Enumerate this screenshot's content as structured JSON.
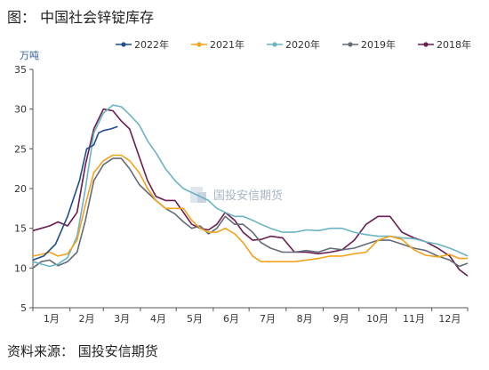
{
  "figure": {
    "title": "图：  中国社会锌锭库存",
    "source": "资料来源：  国投安信期货"
  },
  "chart_data": {
    "type": "line",
    "unit_label": "万吨",
    "watermark_text": "国投安信期货",
    "categories": [
      "1月",
      "2月",
      "3月",
      "4月",
      "5月",
      "6月",
      "7月",
      "8月",
      "9月",
      "10月",
      "11月",
      "12月"
    ],
    "x_unit": "day of year",
    "ylim": [
      5,
      35
    ],
    "yticks": [
      5,
      10,
      15,
      20,
      25,
      30,
      35
    ],
    "grid": false,
    "legend_position": "top",
    "series": [
      {
        "name": "2022年",
        "color": "#1f4e8c",
        "x": [
          1,
          10,
          20,
          30,
          40,
          46,
          52,
          56,
          60,
          66,
          72
        ],
        "y": [
          11,
          11.5,
          13,
          16.5,
          21,
          25,
          25.5,
          27,
          27.3,
          27.5,
          27.8
        ]
      },
      {
        "name": "2021年",
        "color": "#f4a21a",
        "x": [
          1,
          8,
          15,
          22,
          30,
          38,
          45,
          52,
          60,
          68,
          75,
          82,
          90,
          97,
          104,
          112,
          120,
          127,
          134,
          141,
          148,
          155,
          162,
          170,
          177,
          185,
          192,
          200,
          210,
          220,
          230,
          240,
          250,
          260,
          270,
          280,
          290,
          300,
          310,
          320,
          330,
          340,
          350,
          358,
          365
        ],
        "y": [
          11.5,
          11.7,
          12,
          11.5,
          11.8,
          13.5,
          18,
          22,
          23.5,
          24.2,
          24.2,
          23.5,
          22,
          20,
          18.5,
          17.5,
          17.5,
          17.5,
          16,
          15,
          14.5,
          14.5,
          15,
          14.3,
          13.2,
          11.5,
          10.8,
          10.8,
          10.8,
          10.8,
          11,
          11.2,
          11.5,
          11.5,
          11.8,
          12,
          13.5,
          14,
          13.6,
          12.3,
          11.6,
          11.4,
          11.7,
          11.2,
          11.2
        ]
      },
      {
        "name": "2020年",
        "color": "#6bb3c4",
        "x": [
          1,
          8,
          15,
          22,
          30,
          38,
          45,
          52,
          60,
          68,
          75,
          82,
          90,
          97,
          104,
          112,
          120,
          127,
          134,
          141,
          148,
          155,
          162,
          170,
          177,
          185,
          192,
          200,
          210,
          220,
          230,
          240,
          250,
          260,
          270,
          280,
          290,
          300,
          310,
          320,
          330,
          340,
          350,
          358,
          365
        ],
        "y": [
          10.8,
          10.5,
          10.2,
          10.5,
          11.3,
          14,
          20,
          27,
          29.5,
          30.5,
          30.3,
          29.3,
          28,
          26,
          24.5,
          22.5,
          21,
          20,
          19.5,
          19,
          18.5,
          17.5,
          17,
          16.5,
          16.5,
          16,
          15.5,
          15,
          14.5,
          14.5,
          14.8,
          14.7,
          15,
          15,
          14.5,
          14.2,
          14,
          14,
          13.8,
          13.7,
          13.3,
          13,
          12.5,
          12,
          11.5
        ]
      },
      {
        "name": "2019年",
        "color": "#636b78",
        "x": [
          1,
          8,
          15,
          22,
          30,
          38,
          45,
          52,
          60,
          68,
          75,
          82,
          90,
          97,
          104,
          112,
          120,
          127,
          134,
          141,
          148,
          155,
          162,
          170,
          177,
          185,
          192,
          200,
          210,
          220,
          230,
          240,
          250,
          260,
          270,
          280,
          290,
          300,
          310,
          320,
          330,
          340,
          350,
          358,
          365
        ],
        "y": [
          10,
          10.8,
          11,
          10.3,
          10.8,
          12,
          16,
          21,
          23,
          23.8,
          23.8,
          22.5,
          20.5,
          19.5,
          18.5,
          17.5,
          16.8,
          15.8,
          15,
          15.3,
          14.3,
          15,
          16.5,
          15.5,
          15.5,
          14.5,
          13.2,
          12.5,
          12,
          12,
          12.2,
          12,
          12.5,
          12.3,
          12.5,
          13,
          13.5,
          13.5,
          13,
          12.5,
          12.2,
          11.5,
          11,
          10.2,
          10.6
        ]
      },
      {
        "name": "2018年",
        "color": "#6a1d50",
        "x": [
          1,
          8,
          15,
          22,
          30,
          38,
          45,
          52,
          60,
          68,
          75,
          82,
          90,
          97,
          104,
          112,
          120,
          127,
          134,
          141,
          148,
          155,
          162,
          170,
          177,
          185,
          192,
          200,
          210,
          220,
          230,
          240,
          250,
          260,
          270,
          280,
          290,
          300,
          310,
          320,
          330,
          340,
          350,
          358,
          365
        ],
        "y": [
          14.7,
          15,
          15.3,
          15.8,
          15.3,
          17,
          23,
          27.5,
          30,
          29.8,
          28.5,
          27.5,
          24,
          21,
          19,
          18.5,
          18.5,
          17,
          15.5,
          15,
          14.8,
          15.5,
          17,
          16,
          14.5,
          13.5,
          13.6,
          14,
          13.8,
          12,
          12,
          11.8,
          12,
          12.3,
          13.5,
          15.5,
          16.5,
          16.5,
          14.5,
          13.8,
          13.3,
          12.5,
          11.5,
          9.8,
          9
        ]
      }
    ]
  }
}
